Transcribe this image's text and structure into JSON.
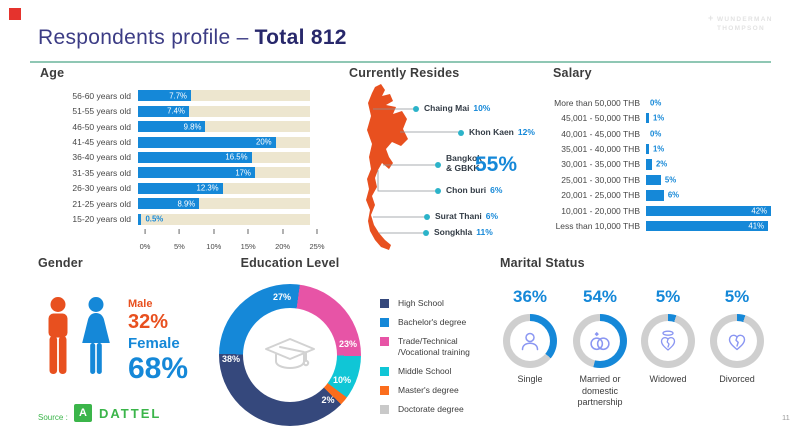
{
  "colors": {
    "blue": "#1588d8",
    "navy_title": "#31317c",
    "beige_track": "#ede6cf",
    "map_orange": "#e8501f",
    "teal_dot": "#2cb3c9",
    "rule_teal": "#8fc7b4",
    "pink": "#e754a6",
    "cyan": "#10c6d6",
    "segment_orange": "#fb6d1d",
    "segment_navy": "#35487c",
    "doctorate_gray": "#c9c9c9",
    "gauge_gray": "#cfcfcf",
    "icon_periwinkle": "#8a96f2",
    "green": "#3bb54a",
    "red_marker": "#e5332d",
    "logo_gray": "#e3e3e3"
  },
  "header": {
    "title_regular": "Respondents profile –",
    "title_bold": "Total 812",
    "logo_plus": "+",
    "logo_line1": "WUNDERMAN",
    "logo_line2": "THOMPSON"
  },
  "age": {
    "title": "Age",
    "max": 25,
    "axis_ticks": [
      "0%",
      "5%",
      "10%",
      "15%",
      "20%",
      "25%"
    ],
    "rows": [
      {
        "label": "56-60 years old",
        "value": 7.7,
        "display": "7.7%"
      },
      {
        "label": "51-55 years old",
        "value": 7.4,
        "display": "7.4%"
      },
      {
        "label": "46-50 years old",
        "value": 9.8,
        "display": "9.8%"
      },
      {
        "label": "41-45 years old",
        "value": 20,
        "display": "20%"
      },
      {
        "label": "36-40 years old",
        "value": 16.5,
        "display": "16.5%"
      },
      {
        "label": "31-35 years old",
        "value": 17,
        "display": "17%"
      },
      {
        "label": "26-30 years old",
        "value": 12.3,
        "display": "12.3%"
      },
      {
        "label": "21-25 years old",
        "value": 8.9,
        "display": "8.9%"
      },
      {
        "label": "15-20 years old",
        "value": 0.5,
        "display": "0.5%"
      }
    ]
  },
  "resides": {
    "title": "Currently Resides",
    "cities": [
      {
        "name": "Chaing Mai",
        "pct": "10%"
      },
      {
        "name": "Khon Kaen",
        "pct": "12%"
      },
      {
        "name": "Bangkok",
        "name2": "& GBKK",
        "pct": "55%"
      },
      {
        "name": "Chon buri",
        "pct": "6%"
      },
      {
        "name": "Surat Thani",
        "pct": "6%"
      },
      {
        "name": "Songkhla",
        "pct": "11%"
      }
    ]
  },
  "salary": {
    "title": "Salary",
    "max": 42,
    "rows": [
      {
        "label": "More than 50,000 THB",
        "value": 0,
        "display": "0%"
      },
      {
        "label": "45,001 - 50,000 THB",
        "value": 1,
        "display": "1%"
      },
      {
        "label": "40,001 - 45,000 THB",
        "value": 0,
        "display": "0%"
      },
      {
        "label": "35,001 - 40,000 THB",
        "value": 1,
        "display": "1%"
      },
      {
        "label": "30,001 - 35,000 THB",
        "value": 2,
        "display": "2%"
      },
      {
        "label": "25,001 - 30,000 THB",
        "value": 5,
        "display": "5%"
      },
      {
        "label": "20,001 - 25,000 THB",
        "value": 6,
        "display": "6%"
      },
      {
        "label": "10,001 - 20,000 THB",
        "value": 42,
        "display": "42%"
      },
      {
        "label": "Less than 10,000 THB",
        "value": 41,
        "display": "41%"
      }
    ]
  },
  "gender": {
    "title": "Gender",
    "male_label": "Male",
    "male_pct": "32%",
    "female_label": "Female",
    "female_pct": "68%"
  },
  "education": {
    "title": "Education Level",
    "donut_start_deg": 8,
    "donut_order": [
      2,
      3,
      4,
      0,
      1,
      5
    ],
    "segments": [
      {
        "label": "High School",
        "pct": 38,
        "display": "38%",
        "color": "#35487c"
      },
      {
        "label": "Bachelor's degree",
        "pct": 27,
        "display": "27%",
        "color": "#1588d8"
      },
      {
        "label": "Trade/Technical /Vocational training",
        "pct": 23,
        "display": "23%",
        "color": "#e754a6"
      },
      {
        "label": "Middle School",
        "pct": 10,
        "display": "10%",
        "color": "#10c6d6"
      },
      {
        "label": "Master's degree",
        "pct": 2,
        "display": "2%",
        "color": "#fb6d1d"
      },
      {
        "label": "Doctorate degree",
        "pct": 0,
        "display": "0%",
        "color": "#c9c9c9"
      }
    ]
  },
  "marital": {
    "title": "Marital Status",
    "items": [
      {
        "pct_display": "36%",
        "value": 36,
        "label": "Single"
      },
      {
        "pct_display": "54%",
        "value": 54,
        "label": "Married or domestic partnership"
      },
      {
        "pct_display": "5%",
        "value": 5,
        "label": "Widowed"
      },
      {
        "pct_display": "5%",
        "value": 5,
        "label": "Divorced"
      }
    ]
  },
  "footer": {
    "source_label": "Source :",
    "brand_mark": "A",
    "brand": "DATTEL",
    "page": "11"
  },
  "chart_data": [
    {
      "type": "bar",
      "orientation": "horizontal",
      "title": "Age",
      "categories": [
        "56-60 years old",
        "51-55 years old",
        "46-50 years old",
        "41-45 years old",
        "36-40 years old",
        "31-35 years old",
        "26-30 years old",
        "21-25 years old",
        "15-20 years old"
      ],
      "values": [
        7.7,
        7.4,
        9.8,
        20,
        16.5,
        17,
        12.3,
        8.9,
        0.5
      ],
      "unit": "percent",
      "xlim": [
        0,
        25
      ],
      "x_ticks": [
        "0%",
        "5%",
        "10%",
        "15%",
        "20%",
        "25%"
      ],
      "grid": false
    },
    {
      "type": "bar",
      "title": "Currently Resides",
      "note": "percent labels on Thailand map markers",
      "categories": [
        "Chaing Mai",
        "Khon Kaen",
        "Bangkok & GBKK",
        "Chon buri",
        "Surat Thani",
        "Songkhla"
      ],
      "values": [
        10,
        12,
        55,
        6,
        6,
        11
      ],
      "unit": "percent"
    },
    {
      "type": "bar",
      "orientation": "horizontal",
      "title": "Salary",
      "categories": [
        "More than 50,000 THB",
        "45,001 - 50,000 THB",
        "40,001 - 45,000 THB",
        "35,001 - 40,000 THB",
        "30,001 - 35,000 THB",
        "25,001 - 30,000 THB",
        "20,001 - 25,000 THB",
        "10,001 - 20,000 THB",
        "Less than 10,000 THB"
      ],
      "values": [
        0,
        1,
        0,
        1,
        2,
        5,
        6,
        42,
        41
      ],
      "unit": "percent",
      "grid": false
    },
    {
      "type": "pie",
      "title": "Gender",
      "categories": [
        "Male",
        "Female"
      ],
      "values": [
        32,
        68
      ]
    },
    {
      "type": "pie",
      "subtype": "donut",
      "title": "Education Level",
      "categories": [
        "High School",
        "Bachelor's degree",
        "Trade/Technical /Vocational training",
        "Middle School",
        "Master's degree",
        "Doctorate degree"
      ],
      "values": [
        38,
        27,
        23,
        10,
        2,
        0
      ]
    },
    {
      "type": "pie",
      "subtype": "gauge",
      "title": "Marital Status",
      "categories": [
        "Single",
        "Married or domestic partnership",
        "Widowed",
        "Divorced"
      ],
      "values": [
        36,
        54,
        5,
        5
      ]
    }
  ]
}
